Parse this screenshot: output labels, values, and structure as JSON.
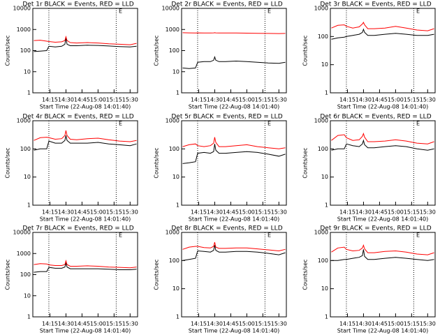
{
  "chart_data": [
    {
      "type": "line",
      "title": "Det 1r BLACK = Events, RED = LLD",
      "ylabel": "Counts/sec",
      "xlabel": "Start Time (22-Aug-08 14:01:40)",
      "annotation": "E",
      "annotation_x": "15:21",
      "vlines": [
        "14:14",
        "15:17"
      ],
      "x": [
        "14:00",
        "14:06",
        "14:12",
        "14:14",
        "14:20",
        "14:26",
        "14:29",
        "14:30",
        "14:31",
        "14:34",
        "14:40",
        "14:50",
        "15:00",
        "15:10",
        "15:20",
        "15:30",
        "15:36"
      ],
      "xlim": [
        "13:59",
        "15:37"
      ],
      "xticks": [
        "14:15",
        "14:30",
        "14:45",
        "15:00",
        "15:15",
        "15:30"
      ],
      "log_y": true,
      "ylim": [
        1,
        10000
      ],
      "yticks": [
        1,
        10,
        100,
        1000,
        10000
      ],
      "series": [
        {
          "color": "#000000",
          "values": [
            90,
            95,
            100,
            160,
            150,
            160,
            200,
            400,
            200,
            170,
            170,
            180,
            175,
            165,
            155,
            150,
            160
          ]
        },
        {
          "color": "#ff0000",
          "values": [
            300,
            310,
            280,
            270,
            250,
            260,
            300,
            450,
            300,
            240,
            230,
            240,
            230,
            210,
            200,
            190,
            220
          ]
        }
      ]
    },
    {
      "type": "line",
      "title": "Det 2r BLACK = Events, RED = LLD",
      "ylabel": "Counts/sec",
      "xlabel": "Start Time (22-Aug-08 14:01:40)",
      "annotation": "E",
      "annotation_x": "15:21",
      "vlines": [
        "14:14",
        "15:17"
      ],
      "x": [
        "14:00",
        "14:06",
        "14:12",
        "14:14",
        "14:20",
        "14:26",
        "14:29",
        "14:30",
        "14:31",
        "14:34",
        "14:40",
        "14:50",
        "15:00",
        "15:10",
        "15:20",
        "15:30",
        "15:36"
      ],
      "xlim": [
        "13:59",
        "15:37"
      ],
      "xticks": [
        "14:15",
        "14:30",
        "14:45",
        "15:00",
        "15:15",
        "15:30"
      ],
      "log_y": true,
      "ylim": [
        1,
        10000
      ],
      "yticks": [
        1,
        10,
        100,
        1000,
        10000
      ],
      "series": [
        {
          "color": "#000000",
          "values": [
            15,
            14,
            15,
            28,
            30,
            30,
            35,
            50,
            35,
            30,
            30,
            32,
            30,
            28,
            26,
            25,
            28
          ]
        },
        {
          "color": "#ff0000",
          "values": [
            700,
            690,
            680,
            690,
            680,
            680,
            690,
            700,
            690,
            680,
            680,
            680,
            670,
            660,
            650,
            640,
            650
          ]
        }
      ]
    },
    {
      "type": "line",
      "title": "Det 3r BLACK = Events, RED = LLD",
      "ylabel": "Counts/sec",
      "xlabel": "Start Time (22-Aug-08 14:01:40)",
      "annotation": "E",
      "annotation_x": "15:21",
      "vlines": [
        "14:14",
        "15:17"
      ],
      "x": [
        "14:00",
        "14:06",
        "14:12",
        "14:14",
        "14:20",
        "14:26",
        "14:29",
        "14:30",
        "14:31",
        "14:34",
        "14:40",
        "14:50",
        "15:00",
        "15:10",
        "15:20",
        "15:30",
        "15:36"
      ],
      "xlim": [
        "13:59",
        "15:37"
      ],
      "xticks": [
        "14:15",
        "14:30",
        "14:45",
        "15:00",
        "15:15",
        "15:30"
      ],
      "log_y": true,
      "ylim": [
        1,
        1000
      ],
      "yticks": [
        1,
        10,
        100,
        1000
      ],
      "series": [
        {
          "color": "#000000",
          "values": [
            80,
            90,
            95,
            100,
            110,
            120,
            140,
            180,
            140,
            110,
            110,
            120,
            130,
            120,
            110,
            110,
            120
          ]
        },
        {
          "color": "#ff0000",
          "values": [
            200,
            250,
            260,
            230,
            200,
            220,
            280,
            320,
            260,
            190,
            190,
            200,
            230,
            200,
            170,
            160,
            190
          ]
        }
      ]
    },
    {
      "type": "line",
      "title": "Det 4r BLACK = Events, RED = LLD",
      "ylabel": "Counts/sec",
      "xlabel": "Start Time (22-Aug-08 14:01:40)",
      "annotation": "E",
      "annotation_x": "15:21",
      "vlines": [
        "14:14",
        "15:17"
      ],
      "x": [
        "14:00",
        "14:06",
        "14:12",
        "14:14",
        "14:20",
        "14:26",
        "14:29",
        "14:30",
        "14:31",
        "14:34",
        "14:40",
        "14:50",
        "15:00",
        "15:10",
        "15:20",
        "15:30",
        "15:36"
      ],
      "xlim": [
        "13:59",
        "15:37"
      ],
      "xticks": [
        "14:15",
        "14:30",
        "14:45",
        "15:00",
        "15:15",
        "15:30"
      ],
      "log_y": true,
      "ylim": [
        1,
        1000
      ],
      "yticks": [
        1,
        10,
        100,
        1000
      ],
      "series": [
        {
          "color": "#000000",
          "values": [
            90,
            100,
            100,
            190,
            160,
            160,
            200,
            300,
            200,
            160,
            160,
            160,
            170,
            150,
            140,
            130,
            150
          ]
        },
        {
          "color": "#ff0000",
          "values": [
            200,
            250,
            260,
            250,
            220,
            230,
            300,
            450,
            300,
            220,
            210,
            230,
            240,
            210,
            190,
            180,
            200
          ]
        }
      ]
    },
    {
      "type": "line",
      "title": "Det 5r BLACK = Events, RED = LLD",
      "ylabel": "Counts/sec",
      "xlabel": "Start Time (22-Aug-08 14:01:40)",
      "annotation": "E",
      "annotation_x": "15:21",
      "vlines": [
        "14:14",
        "15:17"
      ],
      "x": [
        "14:00",
        "14:06",
        "14:12",
        "14:14",
        "14:20",
        "14:26",
        "14:29",
        "14:30",
        "14:31",
        "14:34",
        "14:40",
        "14:50",
        "15:00",
        "15:10",
        "15:20",
        "15:30",
        "15:36"
      ],
      "xlim": [
        "13:59",
        "15:37"
      ],
      "xticks": [
        "14:15",
        "14:30",
        "14:45",
        "15:00",
        "15:15",
        "15:30"
      ],
      "log_y": true,
      "ylim": [
        1,
        1000
      ],
      "yticks": [
        1,
        10,
        100,
        1000
      ],
      "series": [
        {
          "color": "#000000",
          "values": [
            30,
            32,
            35,
            70,
            75,
            70,
            80,
            150,
            90,
            70,
            70,
            75,
            80,
            75,
            65,
            55,
            65
          ]
        },
        {
          "color": "#ff0000",
          "values": [
            120,
            140,
            150,
            130,
            120,
            130,
            160,
            260,
            170,
            120,
            120,
            130,
            140,
            120,
            110,
            100,
            110
          ]
        }
      ]
    },
    {
      "type": "line",
      "title": "Det 6r BLACK = Events, RED = LLD",
      "ylabel": "Counts/sec",
      "xlabel": "Start Time (22-Aug-08 14:01:40)",
      "annotation": "E",
      "annotation_x": "15:21",
      "vlines": [
        "14:14",
        "15:17"
      ],
      "x": [
        "14:00",
        "14:06",
        "14:12",
        "14:14",
        "14:20",
        "14:26",
        "14:29",
        "14:30",
        "14:31",
        "14:34",
        "14:40",
        "14:50",
        "15:00",
        "15:10",
        "15:20",
        "15:30",
        "15:36"
      ],
      "xlim": [
        "13:59",
        "15:37"
      ],
      "xticks": [
        "14:15",
        "14:30",
        "14:45",
        "15:00",
        "15:15",
        "15:30"
      ],
      "log_y": true,
      "ylim": [
        1,
        1000
      ],
      "yticks": [
        1,
        10,
        100,
        1000
      ],
      "series": [
        {
          "color": "#000000",
          "values": [
            90,
            100,
            100,
            150,
            130,
            120,
            150,
            200,
            140,
            110,
            110,
            120,
            130,
            120,
            100,
            90,
            100
          ]
        },
        {
          "color": "#ff0000",
          "values": [
            200,
            300,
            320,
            250,
            200,
            210,
            280,
            350,
            260,
            180,
            180,
            190,
            210,
            190,
            160,
            150,
            180
          ]
        }
      ]
    },
    {
      "type": "line",
      "title": "Det 7r BLACK = Events, RED = LLD",
      "ylabel": "Counts/sec",
      "xlabel": "Start Time (22-Aug-08 14:01:40)",
      "annotation": "E",
      "annotation_x": "15:21",
      "vlines": [
        "14:14",
        "15:17"
      ],
      "x": [
        "14:00",
        "14:06",
        "14:12",
        "14:14",
        "14:20",
        "14:26",
        "14:29",
        "14:30",
        "14:31",
        "14:34",
        "14:40",
        "14:50",
        "15:00",
        "15:10",
        "15:20",
        "15:30",
        "15:36"
      ],
      "xlim": [
        "13:59",
        "15:37"
      ],
      "xticks": [
        "14:15",
        "14:30",
        "14:45",
        "15:00",
        "15:15",
        "15:30"
      ],
      "log_y": true,
      "ylim": [
        1,
        10000
      ],
      "yticks": [
        1,
        10,
        100,
        1000,
        10000
      ],
      "series": [
        {
          "color": "#000000",
          "values": [
            130,
            140,
            140,
            220,
            200,
            200,
            230,
            350,
            230,
            190,
            190,
            190,
            190,
            180,
            170,
            170,
            180
          ]
        },
        {
          "color": "#ff0000",
          "values": [
            300,
            330,
            320,
            290,
            270,
            270,
            300,
            450,
            300,
            250,
            250,
            260,
            250,
            230,
            220,
            210,
            230
          ]
        }
      ]
    },
    {
      "type": "line",
      "title": "Det 8r BLACK = Events, RED = LLD",
      "ylabel": "Counts/sec",
      "xlabel": "Start Time (22-Aug-08 14:01:40)",
      "annotation": "E",
      "annotation_x": "15:21",
      "vlines": [
        "14:14",
        "15:17"
      ],
      "x": [
        "14:00",
        "14:06",
        "14:12",
        "14:14",
        "14:20",
        "14:26",
        "14:29",
        "14:30",
        "14:31",
        "14:34",
        "14:40",
        "14:50",
        "15:00",
        "15:10",
        "15:20",
        "15:30",
        "15:36"
      ],
      "xlim": [
        "13:59",
        "15:37"
      ],
      "xticks": [
        "14:15",
        "14:30",
        "14:45",
        "15:00",
        "15:15",
        "15:30"
      ],
      "log_y": true,
      "ylim": [
        1,
        1000
      ],
      "yticks": [
        1,
        10,
        100,
        1000
      ],
      "series": [
        {
          "color": "#000000",
          "values": [
            100,
            110,
            120,
            220,
            210,
            200,
            230,
            350,
            230,
            200,
            200,
            210,
            210,
            200,
            180,
            160,
            190
          ]
        },
        {
          "color": "#ff0000",
          "values": [
            250,
            300,
            320,
            320,
            290,
            280,
            320,
            450,
            300,
            270,
            270,
            280,
            280,
            260,
            240,
            220,
            250
          ]
        }
      ]
    },
    {
      "type": "line",
      "title": "Det 9r BLACK = Events, RED = LLD",
      "ylabel": "Counts/sec",
      "xlabel": "Start Time (22-Aug-08 14:01:40)",
      "annotation": "E",
      "annotation_x": "15:21",
      "vlines": [
        "14:14",
        "15:17"
      ],
      "x": [
        "14:00",
        "14:06",
        "14:12",
        "14:14",
        "14:20",
        "14:26",
        "14:29",
        "14:30",
        "14:31",
        "14:34",
        "14:40",
        "14:50",
        "15:00",
        "15:10",
        "15:20",
        "15:30",
        "15:36"
      ],
      "xlim": [
        "13:59",
        "15:37"
      ],
      "xticks": [
        "14:15",
        "14:30",
        "14:45",
        "15:00",
        "15:15",
        "15:30"
      ],
      "log_y": true,
      "ylim": [
        1,
        1000
      ],
      "yticks": [
        1,
        10,
        100,
        1000
      ],
      "series": [
        {
          "color": "#000000",
          "values": [
            100,
            100,
            110,
            110,
            120,
            130,
            150,
            250,
            140,
            110,
            110,
            120,
            130,
            120,
            110,
            100,
            110
          ]
        },
        {
          "color": "#ff0000",
          "values": [
            200,
            280,
            300,
            250,
            220,
            230,
            280,
            350,
            260,
            190,
            190,
            210,
            220,
            200,
            170,
            160,
            190
          ]
        }
      ]
    }
  ]
}
